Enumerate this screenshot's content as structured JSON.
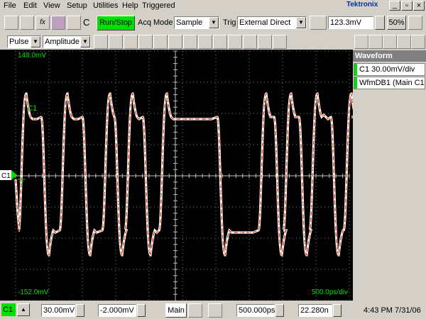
{
  "menu": [
    "File",
    "Edit",
    "View",
    "Setup",
    "Utilities",
    "Help"
  ],
  "status": "Triggered",
  "brand": "Tektronix",
  "toolbar": {
    "function_icon": "fx",
    "channel": "C",
    "run_stop": "Run/Stop",
    "acq_mode_label": "Acq Mode",
    "acq_mode": "Sample",
    "trig_label": "Trig",
    "trig_source": "External Direct",
    "trig_level": "123.3mV",
    "trig_percent": "50%"
  },
  "measure": {
    "type": "Pulse",
    "param": "Amplitude"
  },
  "panel": {
    "title": "Waveform",
    "items": [
      "C1 30.00mV/div",
      "WfmDB1 (Main C1"
    ]
  },
  "display": {
    "top_label": "148.0mV",
    "bottom_label": "-152.0mV",
    "timebase_label": "500.0ps/div",
    "waveform_label": "C1",
    "marker_label": "C1"
  },
  "bottom": {
    "channel": "C1",
    "scale": "30.00mV",
    "offset": "-2.000mV",
    "timebase": "Main",
    "horizontal_scale": "500.000ps",
    "position": "22.280n",
    "clock": "4:43 PM 7/31/06"
  }
}
